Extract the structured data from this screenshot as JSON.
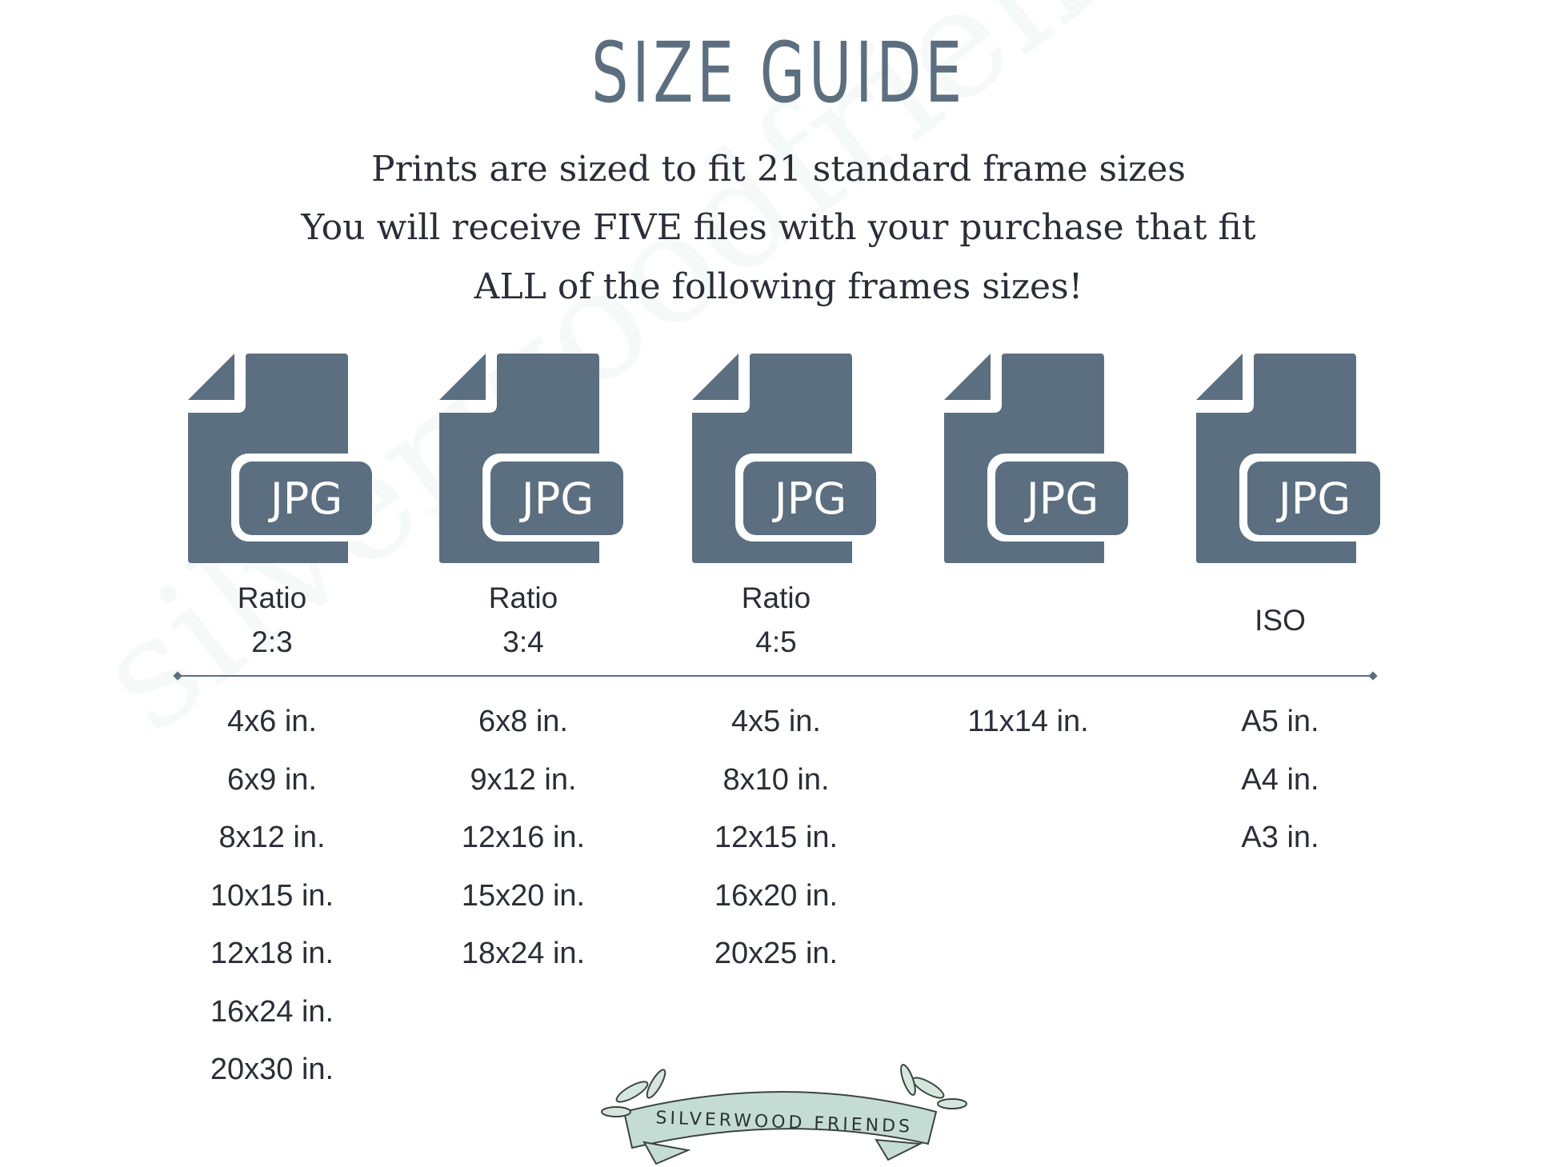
{
  "title": "SIZE GUIDE",
  "subtitle_lines": [
    "Prints are sized to fit 21 standard frame sizes",
    "You will receive FIVE files with your purchase that fit",
    "ALL of the following frames sizes!"
  ],
  "icon_color": "#5b6f80",
  "files": [
    {
      "icon": "jpg-file-icon",
      "badge": "JPG",
      "label_line1": "Ratio",
      "label_line2": "2:3",
      "sizes": [
        "4x6 in.",
        "6x9 in.",
        "8x12 in.",
        "10x15 in.",
        "12x18 in.",
        "16x24 in.",
        "20x30 in."
      ]
    },
    {
      "icon": "jpg-file-icon",
      "badge": "JPG",
      "label_line1": "Ratio",
      "label_line2": "3:4",
      "sizes": [
        "6x8 in.",
        "9x12 in.",
        "12x16 in.",
        "15x20 in.",
        "18x24 in."
      ]
    },
    {
      "icon": "jpg-file-icon",
      "badge": "JPG",
      "label_line1": "Ratio",
      "label_line2": "4:5",
      "sizes": [
        "4x5 in.",
        "8x10 in.",
        "12x15 in.",
        "16x20 in.",
        "20x25 in."
      ]
    },
    {
      "icon": "jpg-file-icon",
      "badge": "JPG",
      "label_line1": "",
      "label_line2": "",
      "sizes": [
        "11x14 in."
      ]
    },
    {
      "icon": "jpg-file-icon",
      "badge": "JPG",
      "label_single": "ISO",
      "sizes": [
        "A5 in.",
        "A4 in.",
        "A3 in."
      ]
    }
  ],
  "watermark": "silverwoodfriends",
  "logo_text": "SILVERWOOD FRIENDS"
}
